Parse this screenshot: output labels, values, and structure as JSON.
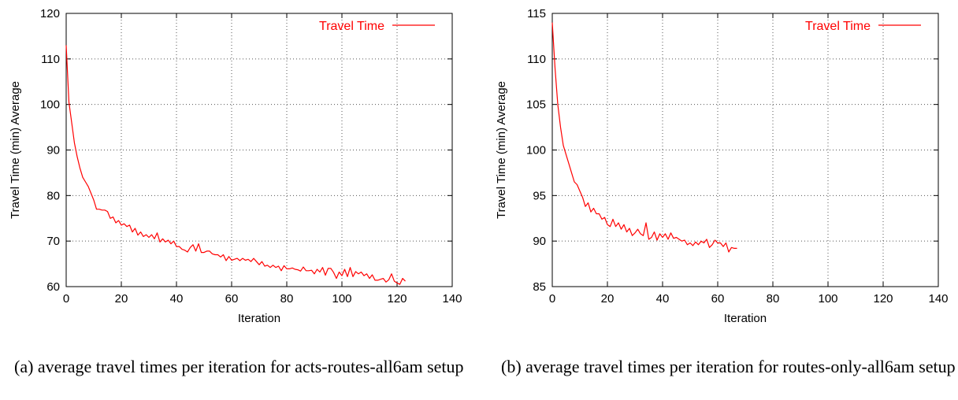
{
  "chart_data": [
    {
      "type": "line",
      "xlabel": "Iteration",
      "ylabel": "Travel Time (min) Average",
      "xlim": [
        0,
        140
      ],
      "ylim": [
        60,
        120
      ],
      "xticks": [
        0,
        20,
        40,
        60,
        80,
        100,
        120,
        140
      ],
      "yticks": [
        60,
        70,
        80,
        90,
        100,
        110,
        120
      ],
      "grid": true,
      "legend_position": "top-right",
      "series": [
        {
          "name": "Travel Time",
          "color": "#ff0000",
          "x": [
            0,
            1,
            2,
            3,
            4,
            5,
            6,
            7,
            8,
            9,
            10,
            11,
            12,
            13,
            14,
            15,
            16,
            17,
            18,
            19,
            20,
            21,
            22,
            23,
            24,
            25,
            26,
            27,
            28,
            29,
            30,
            31,
            32,
            33,
            34,
            35,
            36,
            37,
            38,
            39,
            40,
            41,
            42,
            43,
            44,
            45,
            46,
            47,
            48,
            49,
            50,
            51,
            52,
            53,
            54,
            55,
            56,
            57,
            58,
            59,
            60,
            61,
            62,
            63,
            64,
            65,
            66,
            67,
            68,
            69,
            70,
            71,
            72,
            73,
            74,
            75,
            76,
            77,
            78,
            79,
            80,
            81,
            82,
            83,
            84,
            85,
            86,
            87,
            88,
            89,
            90,
            91,
            92,
            93,
            94,
            95,
            96,
            97,
            98,
            99,
            100,
            101,
            102,
            103,
            104,
            105,
            106,
            107,
            108,
            109,
            110,
            111,
            112,
            113,
            114,
            115,
            116,
            117,
            118,
            119,
            120,
            121,
            122,
            123
          ],
          "y": [
            113,
            100.5,
            96,
            91.5,
            88.5,
            86,
            84,
            83,
            82,
            80.5,
            79,
            77,
            77,
            76.8,
            76.8,
            76.5,
            75,
            75.3,
            74,
            74.5,
            73.5,
            73.8,
            73.2,
            73.5,
            72,
            72.8,
            71.3,
            72,
            71,
            71.4,
            70.8,
            71.4,
            70.5,
            71.8,
            69.8,
            70.5,
            69.8,
            70.2,
            69.4,
            70,
            68.8,
            68.8,
            68.2,
            68,
            67.6,
            68.6,
            69.2,
            67.8,
            69.4,
            67.5,
            67.5,
            67.8,
            67.8,
            67.2,
            67,
            67,
            66.5,
            67,
            65.7,
            66.6,
            65.8,
            66,
            66.2,
            65.7,
            66.2,
            65.8,
            66,
            65.5,
            66.2,
            65.5,
            64.8,
            65.5,
            64.5,
            64.7,
            64.2,
            64.7,
            64.2,
            64.5,
            63.5,
            64.6,
            63.9,
            63.9,
            64.1,
            63.8,
            63.7,
            63.4,
            64.3,
            63.5,
            63.5,
            63.6,
            62.8,
            63.8,
            63.2,
            64.2,
            62.5,
            64,
            64,
            63.1,
            61.8,
            63.2,
            62.4,
            63.8,
            62.2,
            64.2,
            62.2,
            63.3,
            62.8,
            63.2,
            62.4,
            62.8,
            61.8,
            62.6,
            61.4,
            61.4,
            61.6,
            61.8,
            61,
            61.5,
            62.8,
            61.2,
            60.8,
            60.5,
            61.8,
            61.2
          ]
        }
      ]
    },
    {
      "type": "line",
      "xlabel": "Iteration",
      "ylabel": "Travel Time (min) Average",
      "xlim": [
        0,
        140
      ],
      "ylim": [
        85,
        115
      ],
      "xticks": [
        0,
        20,
        40,
        60,
        80,
        100,
        120,
        140
      ],
      "yticks": [
        85,
        90,
        95,
        100,
        105,
        110,
        115
      ],
      "grid": true,
      "legend_position": "top-right",
      "series": [
        {
          "name": "Travel Time",
          "color": "#ff0000",
          "x": [
            0,
            1,
            2,
            3,
            4,
            5,
            6,
            7,
            8,
            9,
            10,
            11,
            12,
            13,
            14,
            15,
            16,
            17,
            18,
            19,
            20,
            21,
            22,
            23,
            24,
            25,
            26,
            27,
            28,
            29,
            30,
            31,
            32,
            33,
            34,
            35,
            36,
            37,
            38,
            39,
            40,
            41,
            42,
            43,
            44,
            45,
            46,
            47,
            48,
            49,
            50,
            51,
            52,
            53,
            54,
            55,
            56,
            57,
            58,
            59,
            60,
            61,
            62,
            63,
            64,
            65,
            66,
            67
          ],
          "y": [
            114,
            109,
            105,
            102.5,
            100.5,
            99.5,
            98.5,
            97.5,
            96.5,
            96.2,
            95.5,
            94.8,
            93.8,
            94.2,
            93.2,
            93.6,
            93,
            93,
            92.4,
            92.6,
            91.8,
            91.6,
            92.4,
            91.6,
            92,
            91.3,
            91.8,
            91,
            91.4,
            90.6,
            90.9,
            91.3,
            90.8,
            90.6,
            92,
            90.2,
            90.4,
            91,
            90.1,
            90.8,
            90.4,
            90.8,
            90.2,
            90.9,
            90.3,
            90.4,
            90.2,
            90,
            90.1,
            89.6,
            89.8,
            89.5,
            89.9,
            89.6,
            90,
            89.8,
            90.2,
            89.3,
            89.6,
            90.1,
            89.8,
            89.8,
            89.4,
            89.8,
            88.8,
            89.3,
            89.2,
            89.2
          ]
        }
      ]
    }
  ],
  "captions": {
    "a": "(a) average travel times per iteration for acts-routes-all6am setup",
    "b": "(b) average travel times per iteration for routes-only-all6am setup"
  }
}
